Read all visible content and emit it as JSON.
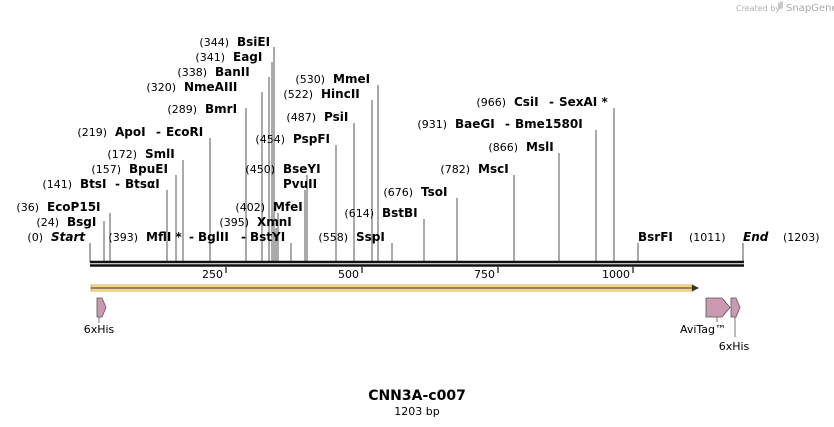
{
  "credit": {
    "prefix": "Created by",
    "brand": "SnapGene"
  },
  "map": {
    "title": "CNN3A-c007",
    "subtitle": "1203 bp",
    "start_label": "Start",
    "start_pos": "(0)",
    "end_label": "End",
    "end_pos": "(1203)",
    "total_bp": 1203,
    "ruler_ticks": [
      "250",
      "500",
      "750",
      "1000"
    ]
  },
  "sites": [
    {
      "name": "EcoP15I",
      "pos": "(36)",
      "bp": 36
    },
    {
      "name": "BsgI",
      "pos": "(24)",
      "bp": 24
    },
    {
      "name": "BtsI",
      "alt": "BtsαI",
      "pos": "(141)",
      "bp": 141
    },
    {
      "name": "BpuEI",
      "pos": "(157)",
      "bp": 157
    },
    {
      "name": "SmlI",
      "pos": "(172)",
      "bp": 172
    },
    {
      "name": "ApoI",
      "alt": "EcoRI",
      "pos": "(219)",
      "bp": 219
    },
    {
      "name": "BmrI",
      "pos": "(289)",
      "bp": 289
    },
    {
      "name": "NmeAIII",
      "pos": "(320)",
      "bp": 320
    },
    {
      "name": "BanII",
      "pos": "(338)",
      "bp": 338
    },
    {
      "name": "EagI",
      "pos": "(341)",
      "bp": 341
    },
    {
      "name": "BsiEI",
      "pos": "(344)",
      "bp": 344
    },
    {
      "name": "MflI *",
      "alt": "BglII",
      "alt2": "BstYI",
      "pos": "(393)",
      "bp": 393
    },
    {
      "name": "XmnI",
      "pos": "(395)",
      "bp": 395
    },
    {
      "name": "MfeI",
      "pos": "(402)",
      "bp": 402
    },
    {
      "name": "PvuII",
      "pos": "(450)",
      "bp": 450
    },
    {
      "name": "BseYI",
      "pos": "(450)",
      "bp": 450
    },
    {
      "name": "PspFI",
      "pos": "(454)",
      "bp": 454
    },
    {
      "name": "PsiI",
      "pos": "(487)",
      "bp": 487
    },
    {
      "name": "HincII",
      "pos": "(522)",
      "bp": 522
    },
    {
      "name": "MmeI",
      "pos": "(530)",
      "bp": 530
    },
    {
      "name": "SspI",
      "pos": "(558)",
      "bp": 558
    },
    {
      "name": "BstBI",
      "pos": "(614)",
      "bp": 614
    },
    {
      "name": "TsoI",
      "pos": "(676)",
      "bp": 676
    },
    {
      "name": "MscI",
      "pos": "(782)",
      "bp": 782
    },
    {
      "name": "MslI",
      "pos": "(866)",
      "bp": 866
    },
    {
      "name": "BaeGI",
      "alt": "Bme1580I",
      "pos": "(931)",
      "bp": 931
    },
    {
      "name": "CsiI",
      "alt": "SexAI *",
      "pos": "(966)",
      "bp": 966
    },
    {
      "name": "BsrFI",
      "pos": "(1011)",
      "bp": 1011
    }
  ],
  "features": [
    {
      "name": "6xHis",
      "color": "#cc99b2"
    },
    {
      "name": "AviTag™",
      "color": "#cc99b2"
    },
    {
      "name": "6xHis",
      "color": "#cc99b2"
    }
  ],
  "orf": {
    "color": "#f0c060"
  }
}
